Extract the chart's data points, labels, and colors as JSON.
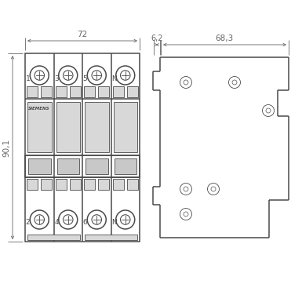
{
  "bg_color": "#ffffff",
  "line_color": "#4a4a4a",
  "dim_color": "#666666",
  "gray_fill": "#b8b8b8",
  "light_gray": "#d8d8d8",
  "mid_gray": "#c8c8c8",
  "fig_width": 3.85,
  "fig_height": 3.85,
  "dim_72": "72",
  "dim_6_2": "6,2",
  "dim_68_3": "68,3",
  "dim_90_1": "90,1",
  "labels_top": [
    "1",
    "3",
    "5",
    "N"
  ],
  "labels_bottom": [
    "2",
    "4",
    "6",
    "N"
  ],
  "siemens_text": "SIEMENS"
}
